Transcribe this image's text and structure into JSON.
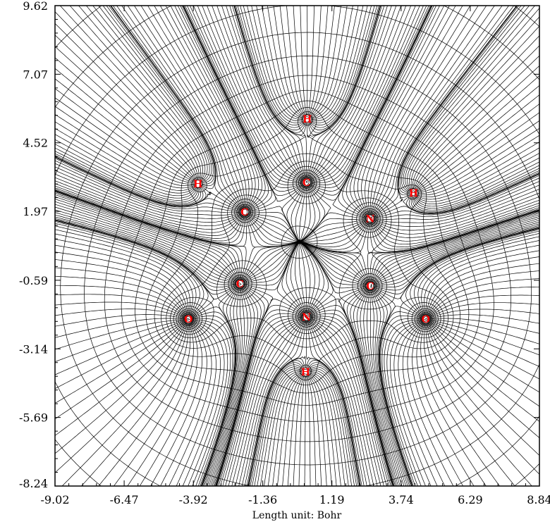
{
  "chart_data": {
    "type": "contour-map",
    "xlabel": "Length unit: Bohr",
    "ylabel": "",
    "xlim": [
      -9.02,
      8.84
    ],
    "ylim": [
      -8.24,
      9.62
    ],
    "x_ticks": [
      "-9.02",
      "-6.47",
      "-3.92",
      "-1.36",
      "1.19",
      "3.74",
      "6.29",
      "8.84"
    ],
    "y_ticks": [
      "9.62",
      "7.07",
      "4.52",
      "1.97",
      "-0.59",
      "-3.14",
      "-5.69",
      "-8.24"
    ],
    "x_tick_values": [
      -9.02,
      -6.47,
      -3.92,
      -1.36,
      1.19,
      3.74,
      6.29,
      8.84
    ],
    "y_tick_values": [
      9.62,
      7.07,
      4.52,
      1.97,
      -0.59,
      -3.14,
      -5.69,
      -8.24
    ],
    "atoms": [
      {
        "label": "H",
        "x": 0.28,
        "y": 5.4
      },
      {
        "label": "C",
        "x": 0.25,
        "y": 3.05
      },
      {
        "label": "H",
        "x": -3.75,
        "y": 3.0
      },
      {
        "label": "H",
        "x": 4.2,
        "y": 2.65
      },
      {
        "label": "C",
        "x": -2.03,
        "y": 1.95
      },
      {
        "label": "N",
        "x": 2.6,
        "y": 1.7
      },
      {
        "label": "C",
        "x": -2.2,
        "y": -0.72
      },
      {
        "label": "C",
        "x": 2.6,
        "y": -0.8
      },
      {
        "label": "O",
        "x": -4.1,
        "y": -2.04
      },
      {
        "label": "N",
        "x": 0.25,
        "y": -1.95
      },
      {
        "label": "O",
        "x": 4.65,
        "y": -2.04
      },
      {
        "label": "H",
        "x": 0.22,
        "y": -4.0
      }
    ]
  }
}
